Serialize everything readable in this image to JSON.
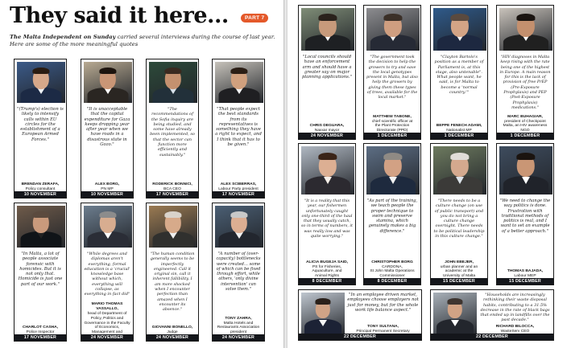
{
  "header": {
    "title": "They said it here...",
    "part_badge": "PART 7",
    "intro_publication": "The Malta Independent on Sunday",
    "intro_text": " carried several interviews during the course of last year. Here are some of the more meaningful quotes"
  },
  "colors": {
    "accent": "#e4592a",
    "date_bar": "#14161b",
    "border": "#1a1a1a"
  },
  "cards": [
    {
      "quote": "\"(Trump's) election is likely to intensify calls within EU circles for the establishment of a European Armed Forces.\"",
      "name": [
        "BRENDAN ZERAFA,",
        "Policy consultant"
      ],
      "date": "10 NOVEMBER"
    },
    {
      "quote": "\"It is unacceptable that the capital expenditure for Gaza keeps dropping year after year when we have roads in a disastrous state in Gozo.\"",
      "name": [
        "ALEX BORG,",
        "PN MP"
      ],
      "date": "10 NOVEMBER"
    },
    {
      "quote": "\"The recommendations of the Sofia inquiry are being studied, and some have already been implemented, so that the sector can function more efficiently and sustainably.\"",
      "name": [
        "RODERICK BONNICI,",
        "BCA CEO"
      ],
      "date": "17 NOVEMBER"
    },
    {
      "quote": "\"That people expect the best standards from its representatives is something they have a right to expect, and I think that it has to be given.\"",
      "name": [
        "ALEX SCIBERRAS,",
        "Labour Party president"
      ],
      "date": "17 NOVEMBER"
    },
    {
      "quote": "\"In Malta, a lot of people associate forensic with homicides. But it is not only that. Homicide is just one part of our work.\"",
      "name": [
        "CHARLOT CASHA,",
        "Police Inspector"
      ],
      "date": "17 NOVEMBER"
    },
    {
      "quote": "\"While degrees and diplomas aren't everything, formal education is a 'crucial' knowledge base without which, everything will collapse, as everything in fact did\"",
      "name": [
        "MARIO THOMAS VASSALLO,",
        "head of Department of",
        "Policy, Politics and",
        "Governance in the Faculty",
        "of Economics,",
        "Management and",
        "Accountancy at UOM"
      ],
      "date": "24 NOVEMBER"
    },
    {
      "quote": "\"The human condition generally seems to be imperfectly engineered. Call it original sin, call it inherent fallibility, I am more shocked when I encounter perfection than amazed when I encounter its absence.\"",
      "name": [
        "GIOVANNI BONELLO,",
        "Judge"
      ],
      "date": "24 NOVEMBER"
    },
    {
      "quote": "\"A number of (over-capacity) bottlenecks were created… some of which can be fixed through effort, while others, 'only divine intervention' can solve them.\"",
      "name": [
        "TONY ZAHRA,",
        "Malta Hotels and",
        "Restaurants Association",
        "president"
      ],
      "date": "24 NOVEMBER"
    },
    {
      "quote": "\"Local councils should have an enforcement arm and should have a greater say on major planning applications.\"",
      "name": [
        "CHRIS DEGUARA,",
        "Naxxar mayor"
      ],
      "date": "24 NOVEMBER"
    },
    {
      "quote": "\"The government took the decision to help the growers to try and save the local genotypes present in Malta, but also help the growers by giving them these types of trees, available for the local market.\"",
      "name": [
        "MATTHEW TABONE,",
        "chief scientific officer at",
        "the Plant Protection",
        "Directorate (PPD)"
      ],
      "date": "1 DECEMBER"
    },
    {
      "quote": "\"Clayton Bartolo's position as a member of Parliament is, at this stage, also untenable\". What people want, he said, is for Malta to become a 'normal country.'\"",
      "name": [
        "BEPPE FENECH ADAMI,",
        "Nationalist MP"
      ],
      "date": "1 DECEMBER"
    },
    {
      "quote": "\"HIV diagnoses in Malta keep rising with the rate being one of the highest in Europe. A main reason for this is the lack of provision of free PrEP (Pre-Exposure Prophylaxis) and PEP (Post-Exposure Prophylaxis) medications.\"",
      "name": [
        "MARC BUHAGIAR,",
        "president of Checkpoint",
        "Malta, an HIV awareness",
        "NGO"
      ],
      "date": "1 DECEMBER"
    },
    {
      "quote": "\"It is a reality that this year, our fishermen unfortunately caught only one-third of the haul that they usually catch, so in terms of numbers, it was really low and was quite worrying.\"",
      "name": [
        "ALICIA BUGEJA SAID,",
        "PS for Fisheries,",
        "Aquaculture, and",
        "Animal Rights"
      ],
      "date": "8 DECEMBER"
    },
    {
      "quote": "\"As part of the training, we teach people the proper technique to swim and preserve stamina, which genuinely makes a big difference.\"",
      "name": [
        "CHRISTOPHER BORG",
        "CARDONA,",
        "St John Malta Operations",
        "Commissioner"
      ],
      "date": "8 DECEMBER"
    },
    {
      "quote": "\"There needs to be a culture change (on use of public transport) and you do not bring a culture change overnight. There needs to be political leadership in this culture change.\"",
      "name": [
        "JOHN EBEJER,",
        "urban planner and an",
        "academic at the",
        "University of Malta"
      ],
      "date": "15 DECEMBER"
    },
    {
      "quote": "\"We need to change the way politics is done. Frustration with traditional methods of politics is real, and I want to set an example of a better approach.\"",
      "name": [
        "THOMAS BAJADA,",
        "Labour MEP"
      ],
      "date": "15 DECEMBER"
    },
    {
      "quote": "\"In an employee driven market, employees choose employers not just for money, but for the whole work life balance aspect.\"",
      "name": [
        "TONY SULTANA,",
        "Principal Permanent Secretary"
      ],
      "date": "22 DECEMBER"
    },
    {
      "quote": "\"Households are increasingly rethinking their waste disposal habits, contributing to a 31.5% decrease in the rate of black bags that ended up in landfills over the past decade.\"",
      "name": [
        "RICHARD BILOCCA,",
        "WasteServ CEO"
      ],
      "date": "22 DECEMBER"
    }
  ]
}
